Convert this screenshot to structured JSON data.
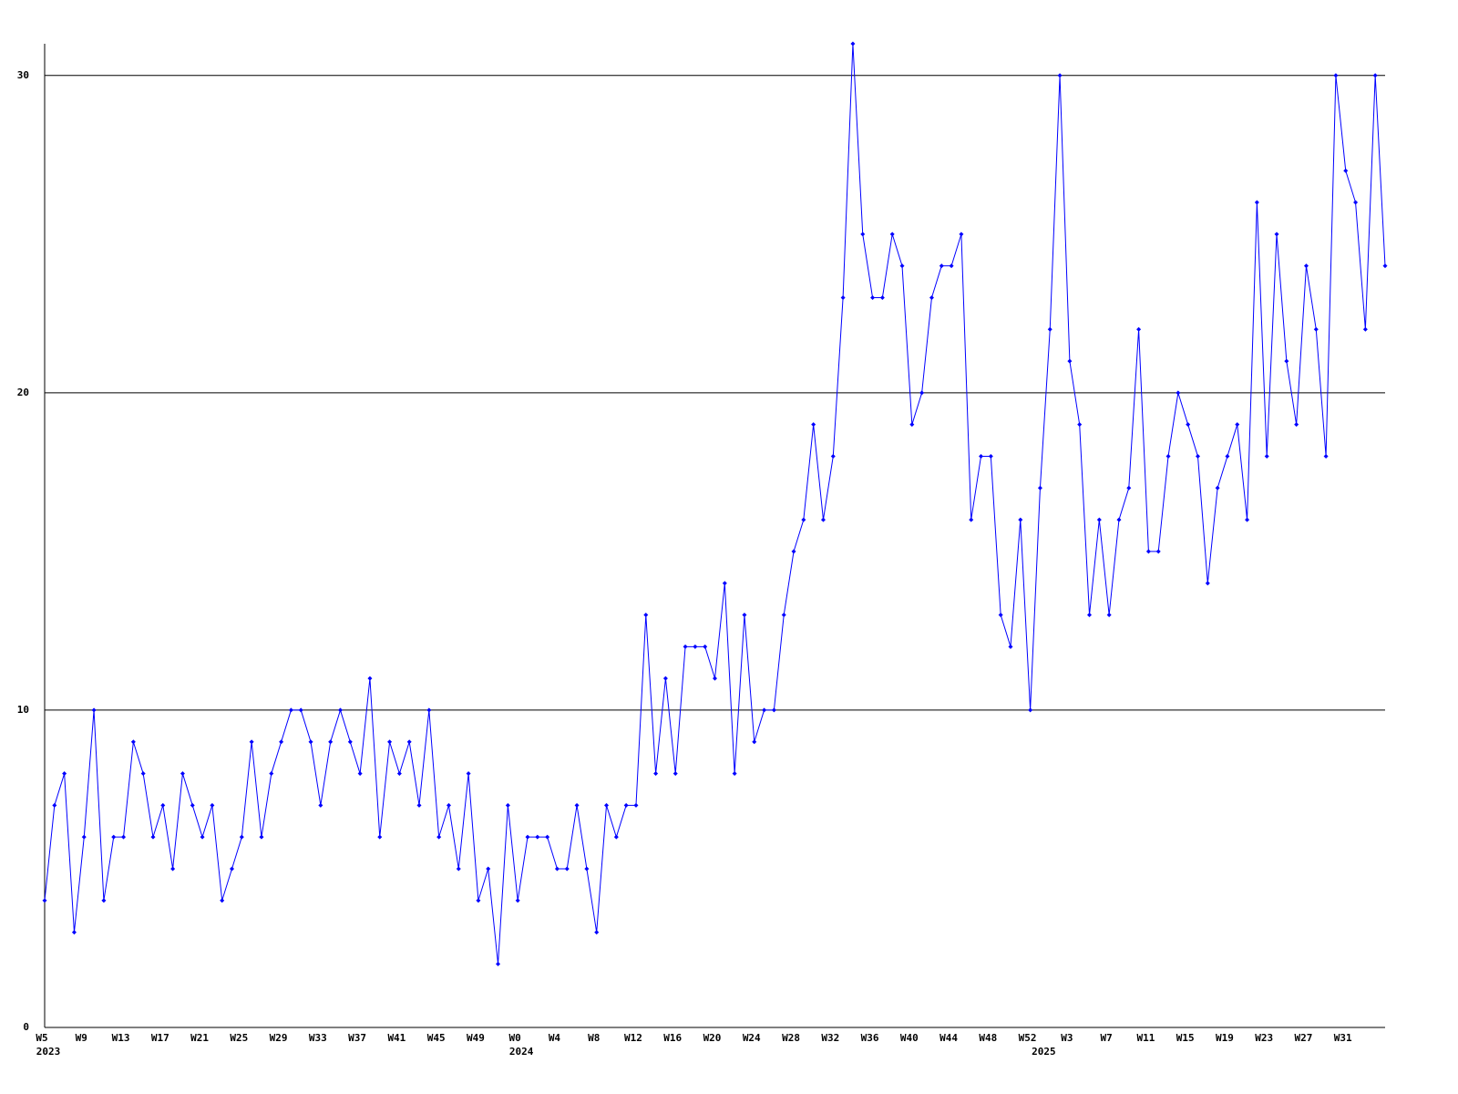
{
  "chart_data": {
    "type": "line",
    "categories": [
      "W5",
      null,
      null,
      null,
      "W9",
      null,
      null,
      null,
      "W13",
      null,
      null,
      null,
      "W17",
      null,
      null,
      null,
      "W21",
      null,
      null,
      null,
      "W25",
      null,
      null,
      null,
      "W29",
      null,
      null,
      null,
      "W33",
      null,
      null,
      null,
      "W37",
      null,
      null,
      null,
      "W41",
      null,
      null,
      null,
      "W45",
      null,
      null,
      null,
      "W49",
      null,
      null,
      null,
      "W0",
      null,
      null,
      null,
      "W4",
      null,
      null,
      null,
      "W8",
      null,
      null,
      null,
      "W12",
      null,
      null,
      null,
      "W16",
      null,
      null,
      null,
      "W20",
      null,
      null,
      null,
      "W24",
      null,
      null,
      null,
      "W28",
      null,
      null,
      null,
      "W32",
      null,
      null,
      null,
      "W36",
      null,
      null,
      null,
      "W40",
      null,
      null,
      null,
      "W44",
      null,
      null,
      null,
      "W48",
      null,
      null,
      null,
      "W52",
      null,
      null,
      null,
      "W3",
      null,
      null,
      null,
      "W7",
      null,
      null,
      null,
      "W11",
      null,
      null,
      null,
      "W15",
      null,
      null,
      null,
      "W19",
      null,
      null,
      null,
      "W23",
      null,
      null,
      null,
      "W27",
      null,
      null,
      null,
      "W31",
      null,
      null,
      null,
      null
    ],
    "category_years": [
      "2023",
      null,
      null,
      null,
      null,
      null,
      null,
      null,
      null,
      null,
      null,
      null,
      null,
      null,
      null,
      null,
      null,
      null,
      null,
      null,
      null,
      null,
      null,
      null,
      null,
      null,
      null,
      null,
      null,
      null,
      null,
      null,
      null,
      null,
      null,
      null,
      null,
      null,
      null,
      null,
      null,
      null,
      null,
      null,
      null,
      null,
      null,
      null,
      "2024",
      null,
      null,
      null,
      null,
      null,
      null,
      null,
      null,
      null,
      null,
      null,
      null,
      null,
      null,
      null,
      null,
      null,
      null,
      null,
      null,
      null,
      null,
      null,
      null,
      null,
      null,
      null,
      null,
      null,
      null,
      null,
      null,
      null,
      null,
      null,
      null,
      null,
      null,
      null,
      null,
      null,
      null,
      null,
      null,
      null,
      null,
      null,
      null,
      null,
      null,
      null,
      null,
      "2025",
      null,
      null,
      null,
      null,
      null,
      null,
      null,
      null,
      null,
      null,
      null,
      null,
      null,
      null,
      null,
      null,
      null,
      null,
      null,
      null,
      null,
      null,
      null,
      null,
      null,
      null,
      null,
      null,
      null,
      null,
      null,
      null,
      null,
      null,
      null
    ],
    "series": [
      {
        "color": "#0000ff",
        "values": [
          4,
          7,
          8,
          3,
          6,
          10,
          4,
          6,
          6,
          9,
          8,
          6,
          7,
          5,
          8,
          7,
          6,
          7,
          4,
          5,
          6,
          9,
          6,
          8,
          9,
          10,
          10,
          9,
          7,
          9,
          10,
          9,
          8,
          11,
          6,
          9,
          8,
          9,
          7,
          10,
          6,
          7,
          5,
          8,
          4,
          5,
          2,
          7,
          4,
          6,
          6,
          6,
          5,
          5,
          7,
          5,
          3,
          7,
          6,
          7,
          7,
          13,
          8,
          11,
          8,
          12,
          12,
          12,
          11,
          14,
          8,
          13,
          9,
          10,
          10,
          13,
          15,
          16,
          19,
          16,
          18,
          23,
          31,
          25,
          23,
          23,
          25,
          24,
          19,
          20,
          23,
          24,
          24,
          25,
          16,
          18,
          18,
          13,
          12,
          16,
          10,
          17,
          22,
          30,
          21,
          19,
          13,
          16,
          13,
          16,
          17,
          22,
          15,
          15,
          18,
          20,
          19,
          18,
          14,
          17,
          18,
          19,
          16,
          26,
          18,
          25,
          21,
          19,
          24,
          22,
          18,
          30,
          27,
          26,
          22,
          30,
          24
        ]
      }
    ],
    "ylim": [
      0,
      31
    ],
    "yticks": [
      0,
      10,
      20,
      30
    ],
    "grid": true
  }
}
